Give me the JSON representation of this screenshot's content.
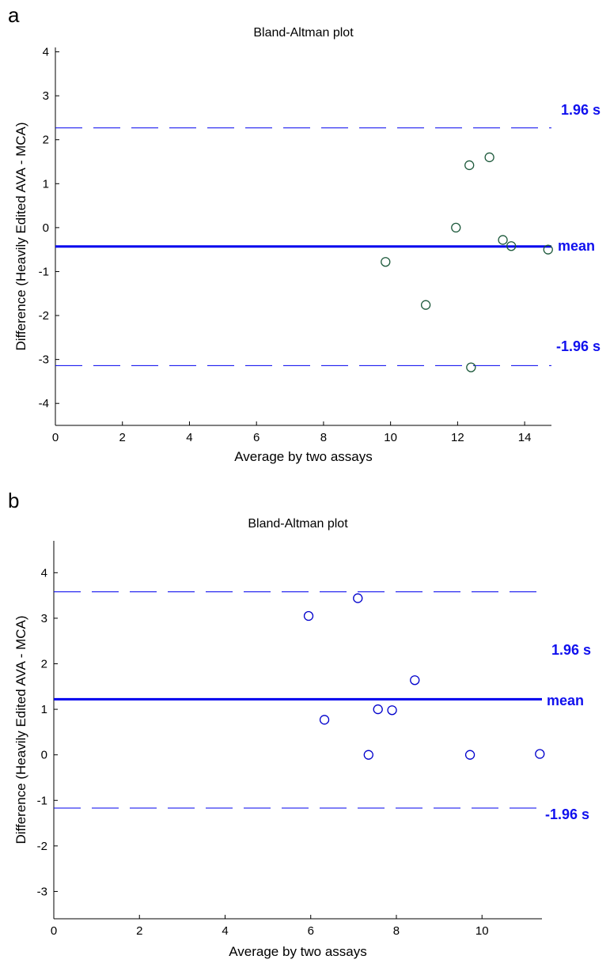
{
  "chart_data": [
    {
      "panel_label": "a",
      "type": "scatter",
      "title": "Bland-Altman plot",
      "xlabel": "Average by two assays",
      "ylabel": "Difference (Heavily Edited AVA - MCA)",
      "xlim": [
        0,
        14.8
      ],
      "ylim": [
        -4.5,
        4.1
      ],
      "xticks": [
        0,
        2,
        4,
        6,
        8,
        10,
        12,
        14
      ],
      "yticks": [
        4,
        3,
        2,
        1,
        0,
        -1,
        -2,
        -3,
        -4
      ],
      "x": [
        9.85,
        11.05,
        11.95,
        12.35,
        12.4,
        12.95,
        13.35,
        13.6,
        14.7
      ],
      "y": [
        -0.78,
        -1.76,
        0.0,
        1.42,
        -3.18,
        1.6,
        -0.28,
        -0.42,
        -0.5
      ],
      "mean": -0.43,
      "upper_limit": 2.27,
      "lower_limit": -3.14,
      "upper_label": "1.96 s",
      "mean_label": "mean",
      "lower_label": "-1.96 s",
      "marker_color": "#1e5a3c",
      "line_color": "#0000ee",
      "annotation_color": "#1010ee",
      "grid": false
    },
    {
      "panel_label": "b",
      "type": "scatter",
      "title": "Bland-Altman plot",
      "xlabel": "Average by two assays",
      "ylabel": "Difference (Heavily Edited AVA - MCA)",
      "xlim": [
        0,
        11.4
      ],
      "ylim": [
        -3.6,
        4.7
      ],
      "xticks": [
        0,
        2,
        4,
        6,
        8,
        10
      ],
      "yticks": [
        4,
        3,
        2,
        1,
        0,
        -1,
        -2,
        -3
      ],
      "x": [
        5.95,
        6.32,
        7.1,
        7.35,
        7.57,
        7.9,
        8.43,
        9.72,
        11.35
      ],
      "y": [
        3.05,
        0.77,
        3.44,
        0.0,
        1.0,
        0.98,
        1.64,
        0.0,
        0.02
      ],
      "mean": 1.22,
      "upper_limit": 3.58,
      "lower_limit": -1.17,
      "upper_label": "1.96 s",
      "mean_label": "mean",
      "lower_label": "-1.96 s",
      "marker_color": "#0000cc",
      "line_color": "#0000ee",
      "annotation_color": "#1010ee",
      "grid": false
    }
  ]
}
